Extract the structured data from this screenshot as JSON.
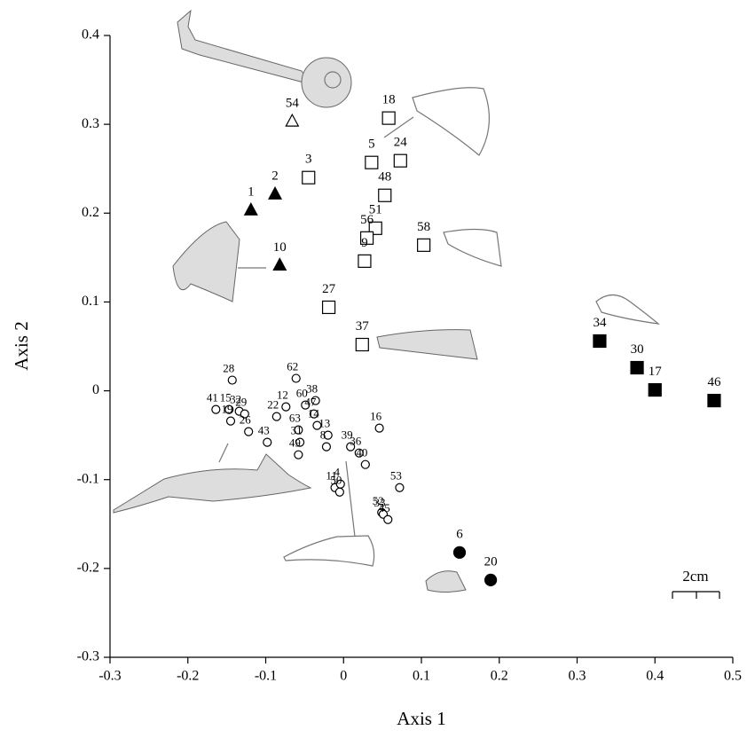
{
  "chart_data": {
    "type": "scatter",
    "x_label": "Axis 1",
    "y_label": "Axis 2",
    "scale_bar_label": "2cm",
    "xlim": [
      -0.3,
      0.5
    ],
    "ylim": [
      -0.3,
      0.4
    ],
    "xticks": [
      -0.3,
      -0.2,
      -0.1,
      0,
      0.1,
      0.2,
      0.3,
      0.4,
      0.5
    ],
    "yticks": [
      -0.3,
      -0.2,
      -0.1,
      0,
      0.1,
      0.2,
      0.3,
      0.4
    ],
    "series": [
      {
        "marker": "triangle",
        "filled": false,
        "color": "#000000",
        "labels": [
          "54"
        ],
        "x": [
          -0.066
        ],
        "values": [
          0.303
        ]
      },
      {
        "marker": "triangle",
        "filled": true,
        "color": "#000000",
        "labels": [
          "1",
          "2",
          "10"
        ],
        "x": [
          -0.119,
          -0.088,
          -0.082
        ],
        "values": [
          0.203,
          0.221,
          0.141
        ]
      },
      {
        "marker": "square",
        "filled": false,
        "color": "#000000",
        "labels": [
          "18",
          "5",
          "24",
          "3",
          "48",
          "51",
          "56",
          "9",
          "58",
          "27",
          "37"
        ],
        "x": [
          0.058,
          0.036,
          0.073,
          -0.045,
          0.053,
          0.041,
          0.03,
          0.027,
          0.103,
          -0.019,
          0.024
        ],
        "values": [
          0.307,
          0.257,
          0.259,
          0.24,
          0.22,
          0.183,
          0.172,
          0.146,
          0.164,
          0.094,
          0.052
        ]
      },
      {
        "marker": "square",
        "filled": true,
        "color": "#000000",
        "labels": [
          "34",
          "30",
          "17",
          "46"
        ],
        "x": [
          0.329,
          0.377,
          0.4,
          0.476
        ],
        "values": [
          0.056,
          0.026,
          0.001,
          -0.011
        ]
      },
      {
        "marker": "circle",
        "filled": false,
        "color": "#000000",
        "labels": [
          "28",
          "62",
          "41",
          "15",
          "32",
          "19",
          "29",
          "22",
          "12",
          "60",
          "38",
          "47",
          "14",
          "26",
          "63",
          "43",
          "13",
          "39",
          "16",
          "31",
          "49",
          "8",
          "36",
          "40",
          "53",
          "11",
          "4",
          "52",
          "50",
          "33",
          "45"
        ],
        "x": [
          -0.143,
          -0.061,
          -0.164,
          -0.147,
          -0.134,
          -0.145,
          -0.127,
          -0.086,
          -0.074,
          -0.049,
          -0.036,
          -0.038,
          -0.034,
          -0.122,
          -0.058,
          -0.098,
          -0.02,
          0.009,
          0.046,
          -0.056,
          -0.058,
          -0.022,
          0.02,
          0.028,
          0.072,
          -0.011,
          -0.004,
          0.049,
          -0.005,
          0.051,
          0.057
        ],
        "values": [
          0.012,
          0.014,
          -0.021,
          -0.021,
          -0.023,
          -0.034,
          -0.026,
          -0.029,
          -0.018,
          -0.016,
          -0.011,
          -0.026,
          -0.039,
          -0.046,
          -0.044,
          -0.058,
          -0.05,
          -0.063,
          -0.042,
          -0.058,
          -0.072,
          -0.063,
          -0.07,
          -0.083,
          -0.109,
          -0.109,
          -0.105,
          -0.137,
          -0.114,
          -0.139,
          -0.145
        ]
      },
      {
        "marker": "circle",
        "filled": true,
        "color": "#000000",
        "labels": [
          "6",
          "20"
        ],
        "x": [
          0.149,
          0.189
        ],
        "values": [
          -0.182,
          -0.213
        ]
      }
    ]
  }
}
